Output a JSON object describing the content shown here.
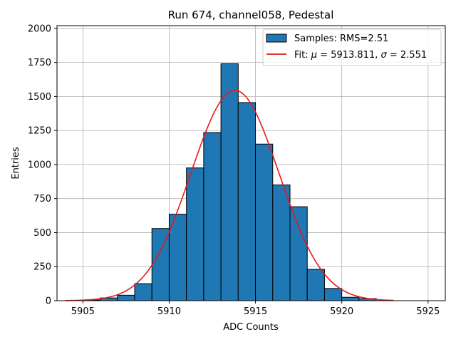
{
  "chart_data": {
    "type": "bar",
    "title": "Run 674, channel058, Pedestal",
    "xlabel": "ADC Counts",
    "ylabel": "Entries",
    "xlim": [
      5903.5,
      5926.0
    ],
    "ylim": [
      0,
      2020
    ],
    "xticks": [
      5905,
      5910,
      5915,
      5920,
      5925
    ],
    "xtick_labels": [
      "5905",
      "5910",
      "5915",
      "5920",
      "5925"
    ],
    "yticks": [
      0,
      250,
      500,
      750,
      1000,
      1250,
      1500,
      1750,
      2000
    ],
    "ytick_labels": [
      "0",
      "250",
      "500",
      "750",
      "1000",
      "1250",
      "1500",
      "1750",
      "2000"
    ],
    "grid": true,
    "legend_position": "top-right",
    "histogram": {
      "name": "Samples: RMS=2.51",
      "color": "#1f77b4",
      "edge_color": "#000000",
      "bin_edges": [
        5905,
        5906,
        5907,
        5908,
        5909,
        5910,
        5911,
        5912,
        5913,
        5914,
        5915,
        5916,
        5917,
        5918,
        5919,
        5920,
        5921,
        5922
      ],
      "values": [
        5,
        20,
        40,
        125,
        530,
        635,
        975,
        1235,
        1740,
        1455,
        1150,
        850,
        690,
        230,
        90,
        25,
        15
      ]
    },
    "fit": {
      "name_prefix": "Fit: ",
      "name_mu": "μ",
      "name_mid": " = 5913.811, ",
      "name_sigma": "σ",
      "name_suffix": " = 2.551",
      "color": "#e41a1c",
      "mu": 5913.811,
      "sigma": 2.551,
      "amplitude": 1545,
      "x_range": [
        5904.0,
        5923.0
      ]
    }
  }
}
